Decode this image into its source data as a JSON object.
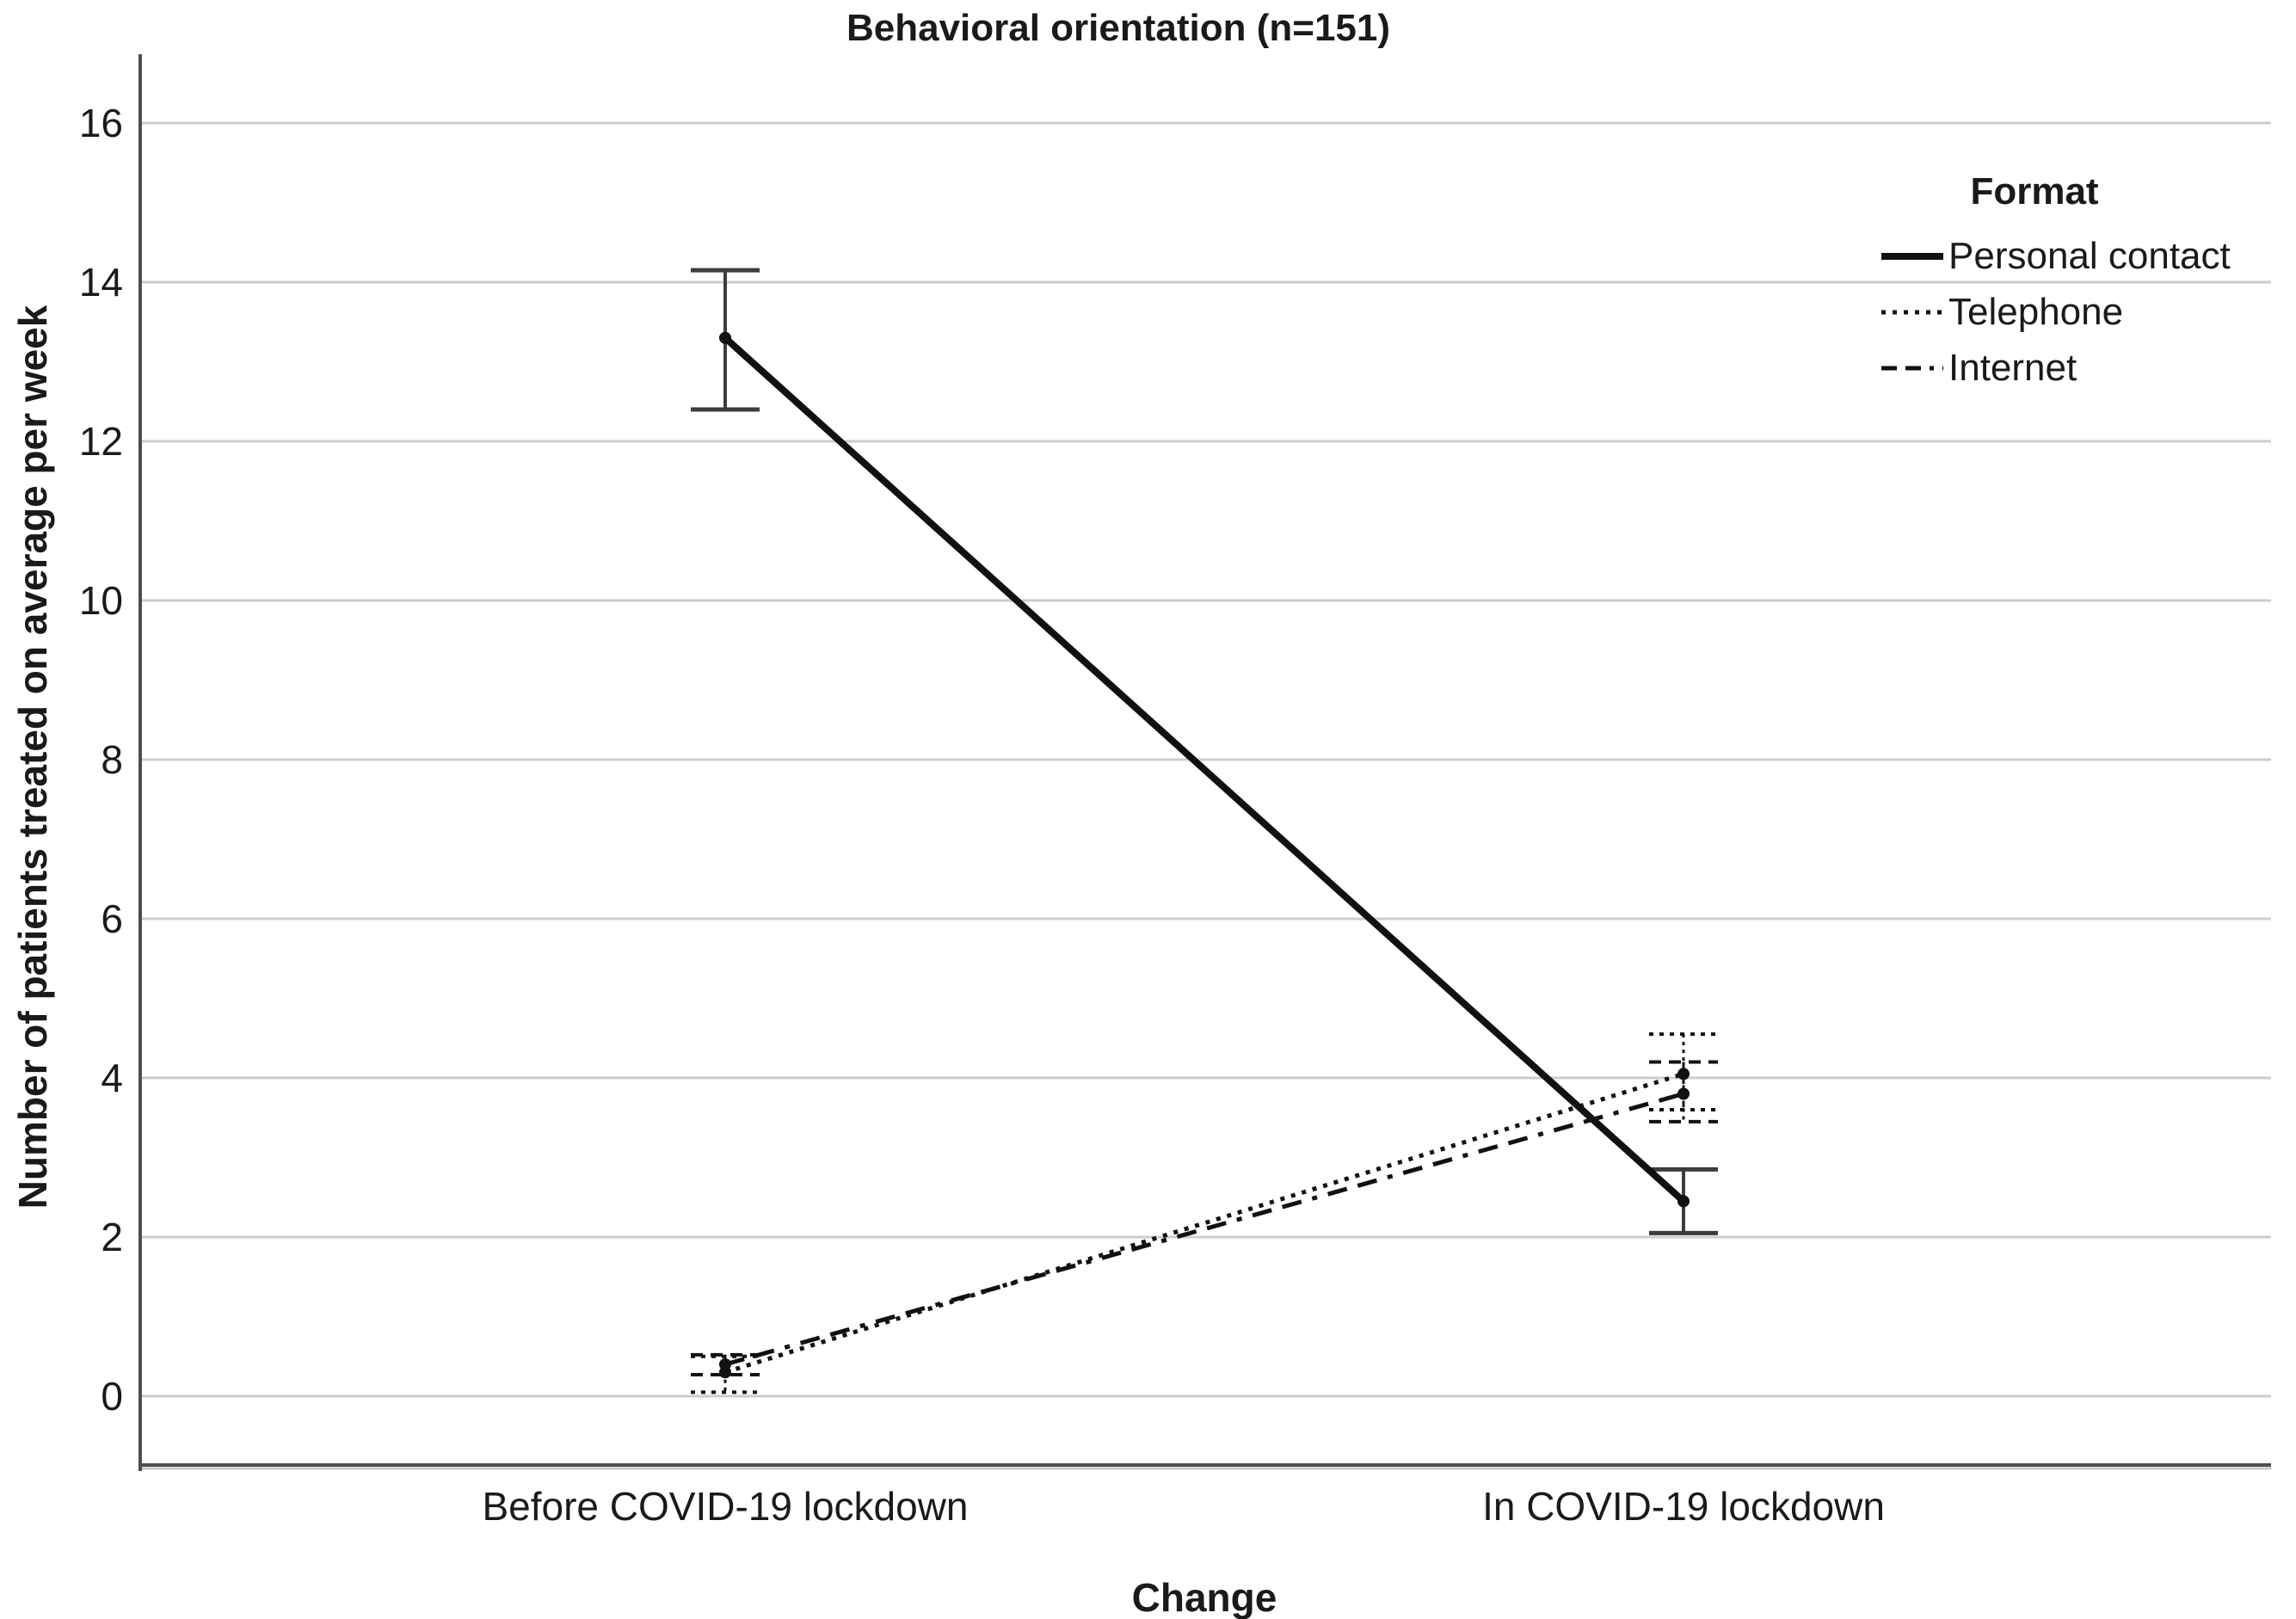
{
  "title": "Behavioral orientation (n=151)",
  "colors": {
    "background": "#ffffff",
    "line": "#111111",
    "grid": "#cdcdcd",
    "axis": "#4d4d4d",
    "axis_shadow": "#c8c8c8",
    "solid_error": "#3d3d3d",
    "text": "#1a1a1a"
  },
  "chart_data": {
    "type": "line",
    "title": "Behavioral orientation (n=151)",
    "xlabel": "Change",
    "ylabel": "Number of patients treated on average per week",
    "categories": [
      "Before COVID-19 lockdown",
      "In COVID-19 lockdown"
    ],
    "yticks": [
      0,
      2,
      4,
      6,
      8,
      10,
      12,
      14,
      16
    ],
    "ylim": [
      -0.9,
      16.9
    ],
    "grid": true,
    "legend_title": "Format",
    "legend_position": "right-top",
    "error_bars": "95% confidence intervals",
    "series": [
      {
        "name": "Personal contact",
        "style": "solid",
        "values": [
          13.3,
          2.45
        ],
        "ci_low": [
          12.4,
          2.05
        ],
        "ci_high": [
          14.15,
          2.85
        ]
      },
      {
        "name": "Telephone",
        "style": "dotted",
        "values": [
          0.3,
          4.05
        ],
        "ci_low": [
          0.05,
          3.6
        ],
        "ci_high": [
          0.5,
          4.55
        ]
      },
      {
        "name": "Internet",
        "style": "dashed",
        "values": [
          0.4,
          3.8
        ],
        "ci_low": [
          0.27,
          3.45
        ],
        "ci_high": [
          0.52,
          4.2
        ]
      }
    ]
  }
}
